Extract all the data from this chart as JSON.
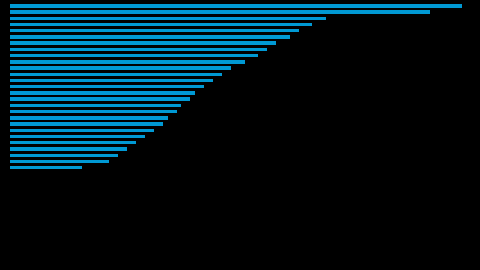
{
  "values": [
    100,
    93,
    70,
    67,
    64,
    62,
    59,
    57,
    55,
    52,
    49,
    47,
    45,
    43,
    41,
    40,
    38,
    37,
    35,
    34,
    32,
    30,
    28,
    26,
    24,
    22,
    16
  ],
  "bar_color": "#0099d4",
  "background_color": "#000000",
  "bar_height": 0.55,
  "xlim": [
    0,
    103
  ]
}
